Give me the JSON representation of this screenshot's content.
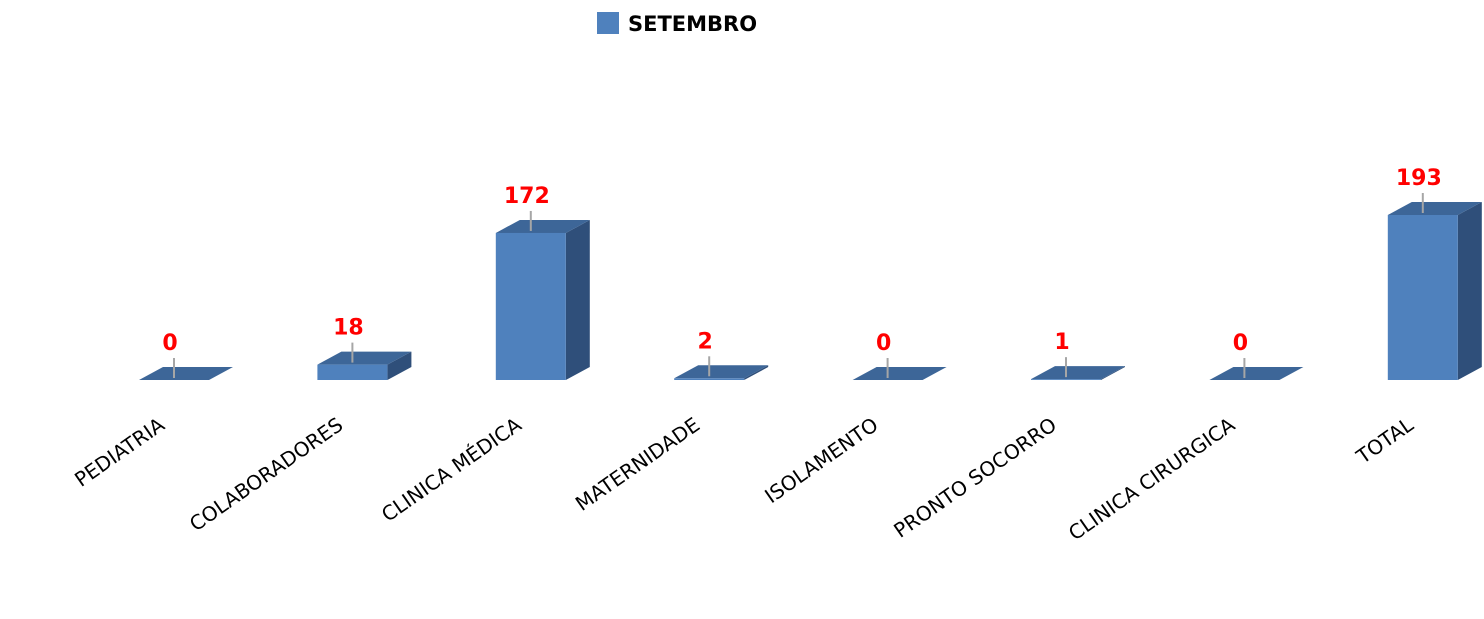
{
  "chart_data": {
    "type": "bar3d",
    "categories": [
      "PEDIATRIA",
      "COLABORADORES",
      "CLINICA MÉDICA",
      "MATERNIDADE",
      "ISOLAMENTO",
      "PRONTO SOCORRO",
      "CLINICA CIRURGICA",
      "TOTAL"
    ],
    "series": [
      {
        "name": "SETEMBRO",
        "color": "#4f81bd",
        "values": [
          0,
          18,
          172,
          2,
          0,
          1,
          0,
          193
        ]
      }
    ],
    "legend": "top"
  }
}
